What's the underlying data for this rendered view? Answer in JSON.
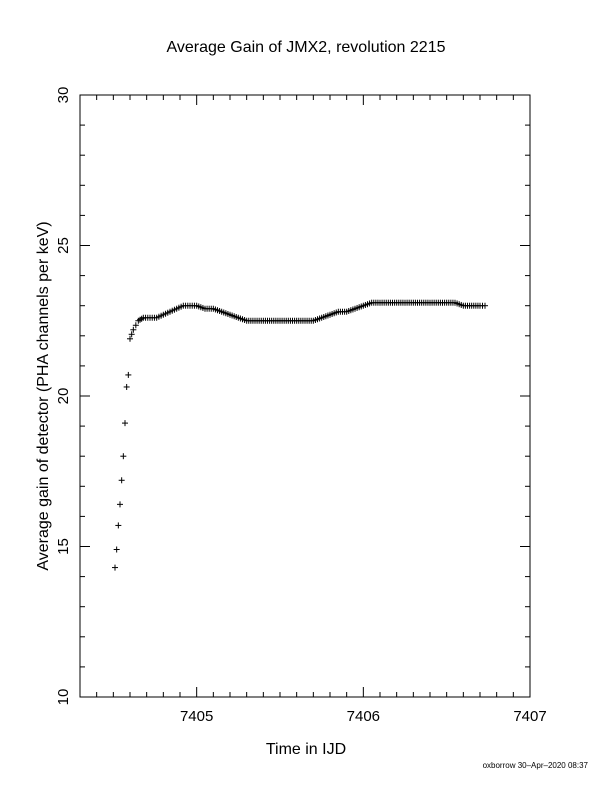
{
  "chart_data": {
    "type": "scatter",
    "title": "Average Gain of JMX2, revolution 2215",
    "xlabel": "Time in IJD",
    "ylabel": "Average gain of detector (PHA channels per keV)",
    "xlim": [
      7404.3,
      7407.0
    ],
    "ylim": [
      10,
      30
    ],
    "xticks": [
      7405,
      7406,
      7407
    ],
    "xtick_labels": [
      "7405",
      "7406",
      "7407"
    ],
    "yticks": [
      10,
      15,
      20,
      25,
      30
    ],
    "ytick_labels": [
      "10",
      "15",
      "20",
      "25",
      "30"
    ],
    "marker": "plus",
    "grid": false,
    "series": [
      {
        "x": [
          7404.51,
          7404.52,
          7404.53,
          7404.54,
          7404.55,
          7404.56,
          7404.57,
          7404.58,
          7404.59,
          7404.6,
          7404.62,
          7404.65,
          7404.68,
          7404.72,
          7404.76,
          7404.8,
          7404.84,
          7404.88,
          7404.92,
          7404.96,
          7405.0,
          7405.05,
          7405.1,
          7405.15,
          7405.2,
          7405.25,
          7405.3,
          7405.35,
          7405.4,
          7405.45,
          7405.5,
          7405.55,
          7405.6,
          7405.65,
          7405.7,
          7405.75,
          7405.8,
          7405.85,
          7405.9,
          7405.95,
          7406.0,
          7406.05,
          7406.1,
          7406.15,
          7406.2,
          7406.25,
          7406.3,
          7406.35,
          7406.4,
          7406.45,
          7406.5,
          7406.55,
          7406.6,
          7406.65,
          7406.7,
          7406.73
        ],
        "y": [
          14.3,
          14.9,
          15.7,
          16.4,
          17.2,
          18.0,
          19.1,
          20.3,
          20.7,
          21.9,
          22.2,
          22.5,
          22.6,
          22.6,
          22.6,
          22.7,
          22.8,
          22.9,
          23.0,
          23.0,
          23.0,
          22.9,
          22.9,
          22.8,
          22.7,
          22.6,
          22.5,
          22.5,
          22.5,
          22.5,
          22.5,
          22.5,
          22.5,
          22.5,
          22.5,
          22.6,
          22.7,
          22.8,
          22.8,
          22.9,
          23.0,
          23.1,
          23.1,
          23.1,
          23.1,
          23.1,
          23.1,
          23.1,
          23.1,
          23.1,
          23.1,
          23.1,
          23.0,
          23.0,
          23.0,
          23.0
        ]
      }
    ],
    "footer": "oxborrow 30–Apr–2020 08:37"
  }
}
